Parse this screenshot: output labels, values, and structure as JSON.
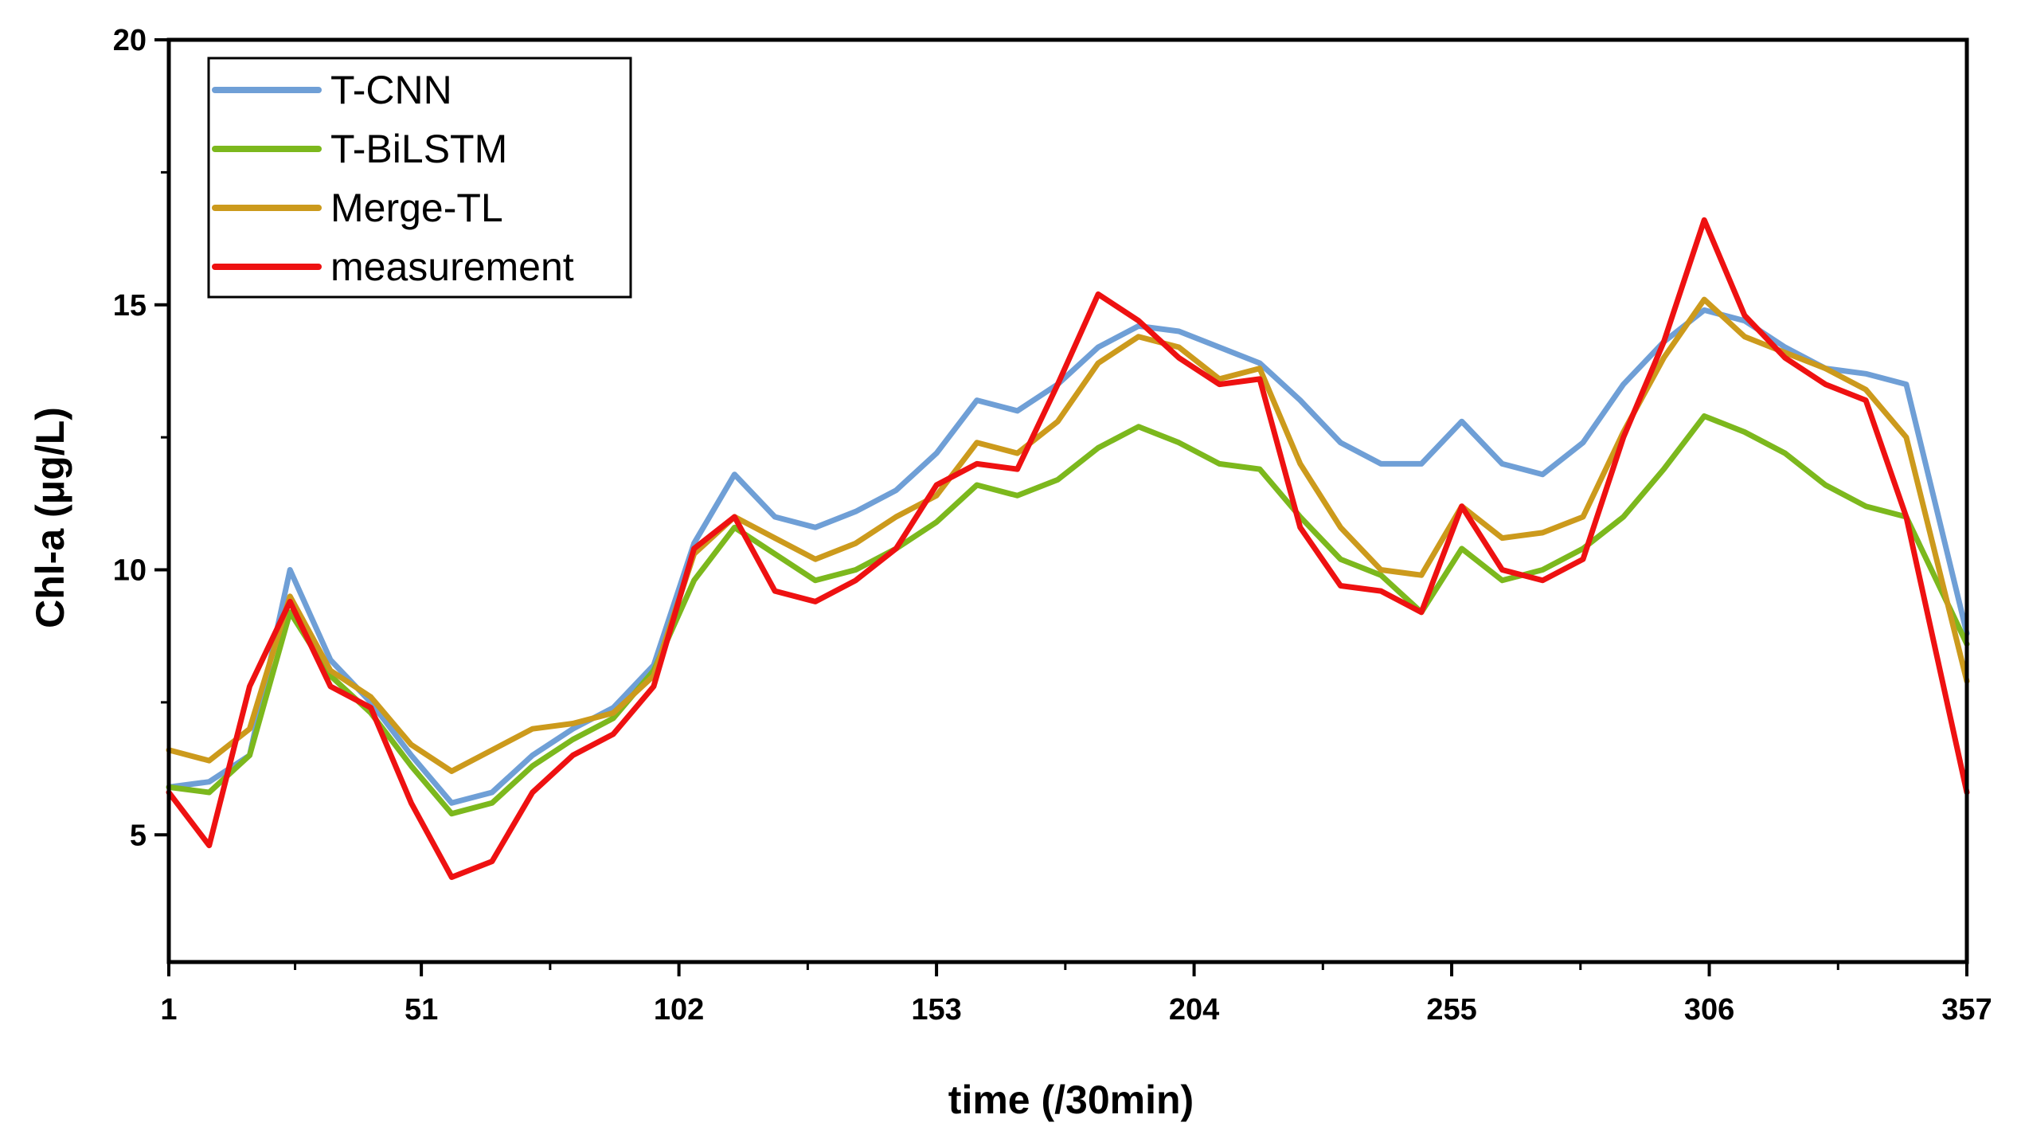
{
  "chart_data": {
    "type": "line",
    "xlabel": "time (/30min)",
    "ylabel": "Chl-a (μg/L)",
    "xlim": [
      1,
      357
    ],
    "ylim": [
      2.6,
      20
    ],
    "x_ticks": [
      1,
      51,
      102,
      153,
      204,
      255,
      306,
      357
    ],
    "x_tick_labels": [
      "1",
      "51",
      "102",
      "153",
      "204",
      "255",
      "306",
      "357"
    ],
    "y_ticks": [
      5,
      10,
      15,
      20
    ],
    "y_tick_labels": [
      "5",
      "10",
      "15",
      "20"
    ],
    "legend": {
      "position": "top-left",
      "framed": true
    },
    "grid": false,
    "x": [
      1,
      9,
      17,
      25,
      33,
      41,
      49,
      57,
      65,
      73,
      81,
      89,
      97,
      105,
      113,
      121,
      129,
      137,
      145,
      153,
      161,
      169,
      177,
      185,
      193,
      201,
      209,
      217,
      225,
      233,
      241,
      249,
      257,
      265,
      273,
      281,
      289,
      297,
      305,
      313,
      321,
      329,
      337,
      345,
      357
    ],
    "series": [
      {
        "name": "T-CNN",
        "color": "#6f9fd6",
        "values": [
          5.9,
          6.0,
          6.5,
          10.0,
          8.3,
          7.5,
          6.5,
          5.6,
          5.8,
          6.5,
          7.0,
          7.4,
          8.2,
          10.5,
          11.8,
          11.0,
          10.8,
          11.1,
          11.5,
          12.2,
          13.2,
          13.0,
          13.5,
          14.2,
          14.6,
          14.5,
          14.2,
          13.9,
          13.2,
          12.4,
          12.0,
          12.0,
          12.8,
          12.0,
          11.8,
          12.4,
          13.5,
          14.3,
          14.9,
          14.7,
          14.2,
          13.8,
          13.7,
          13.5,
          8.8
        ]
      },
      {
        "name": "T-BiLSTM",
        "color": "#7cb81d",
        "values": [
          5.9,
          5.8,
          6.5,
          9.2,
          8.0,
          7.3,
          6.3,
          5.4,
          5.6,
          6.3,
          6.8,
          7.2,
          8.1,
          9.8,
          10.8,
          10.3,
          9.8,
          10.0,
          10.4,
          10.9,
          11.6,
          11.4,
          11.7,
          12.3,
          12.7,
          12.4,
          12.0,
          11.9,
          11.0,
          10.2,
          9.9,
          9.2,
          10.4,
          9.8,
          10.0,
          10.4,
          11.0,
          11.9,
          12.9,
          12.6,
          12.2,
          11.6,
          11.2,
          11.0,
          8.6
        ]
      },
      {
        "name": "Merge-TL",
        "color": "#cc9a1c",
        "values": [
          6.6,
          6.4,
          7.0,
          9.5,
          8.1,
          7.6,
          6.7,
          6.2,
          6.6,
          7.0,
          7.1,
          7.3,
          8.0,
          10.3,
          11.0,
          10.6,
          10.2,
          10.5,
          11.0,
          11.4,
          12.4,
          12.2,
          12.8,
          13.9,
          14.4,
          14.2,
          13.6,
          13.8,
          12.0,
          10.8,
          10.0,
          9.9,
          11.2,
          10.6,
          10.7,
          11.0,
          12.6,
          14.0,
          15.1,
          14.4,
          14.1,
          13.8,
          13.4,
          12.5,
          7.9
        ]
      },
      {
        "name": "measurement",
        "color": "#ee1111",
        "values": [
          5.8,
          4.8,
          7.8,
          9.4,
          7.8,
          7.4,
          5.6,
          4.2,
          4.5,
          5.8,
          6.5,
          6.9,
          7.8,
          10.4,
          11.0,
          9.6,
          9.4,
          9.8,
          10.4,
          11.6,
          12.0,
          11.9,
          13.5,
          15.2,
          14.7,
          14.0,
          13.5,
          13.6,
          10.8,
          9.7,
          9.6,
          9.2,
          11.2,
          10.0,
          9.8,
          10.2,
          12.5,
          14.3,
          16.6,
          14.8,
          14.0,
          13.5,
          13.2,
          11.0,
          5.8
        ]
      }
    ]
  }
}
